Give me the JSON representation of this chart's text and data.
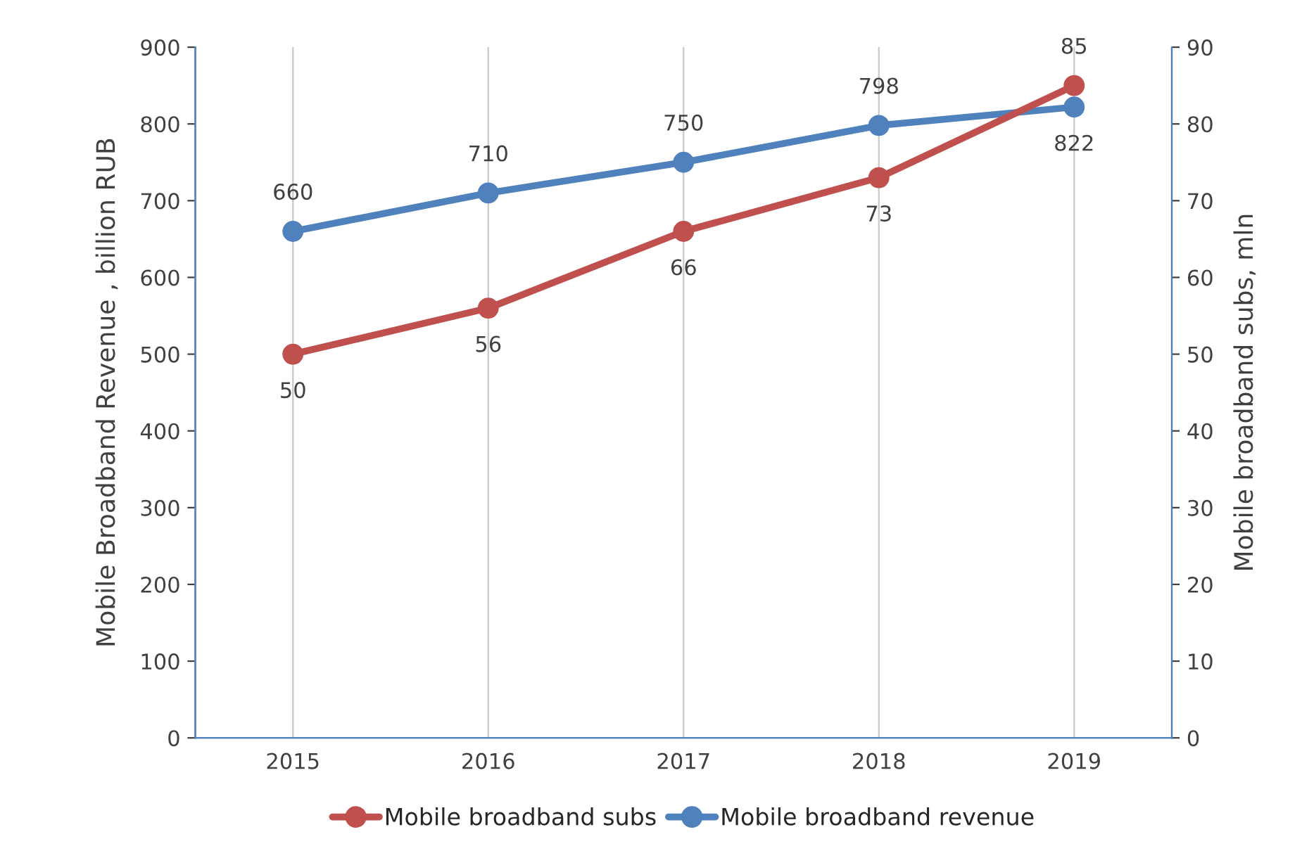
{
  "chart_data": {
    "type": "line",
    "categories": [
      "2015",
      "2016",
      "2017",
      "2018",
      "2019"
    ],
    "ylabel": "Mobile Broadband Revenue , billion RUB",
    "y2label": "Mobile broadband subs, mln",
    "series": [
      {
        "name": "Mobile broadband subs",
        "color": "#c0504d",
        "values": [
          50,
          56,
          66,
          73,
          85
        ],
        "axis": "y2"
      },
      {
        "name": "Mobile broadband revenue",
        "color": "#4f81bd",
        "values": [
          660,
          710,
          750,
          798,
          822
        ],
        "axis": "y"
      }
    ],
    "ylim": [
      0,
      900
    ],
    "yticks": [
      0,
      100,
      200,
      300,
      400,
      500,
      600,
      700,
      800,
      900
    ],
    "y2lim": [
      0,
      90
    ],
    "y2ticks": [
      0,
      10,
      20,
      30,
      40,
      50,
      60,
      70,
      80,
      90
    ],
    "grid": "x",
    "legend": "bottom",
    "marker": "circle",
    "line_style": "solid",
    "data_labels": true
  }
}
